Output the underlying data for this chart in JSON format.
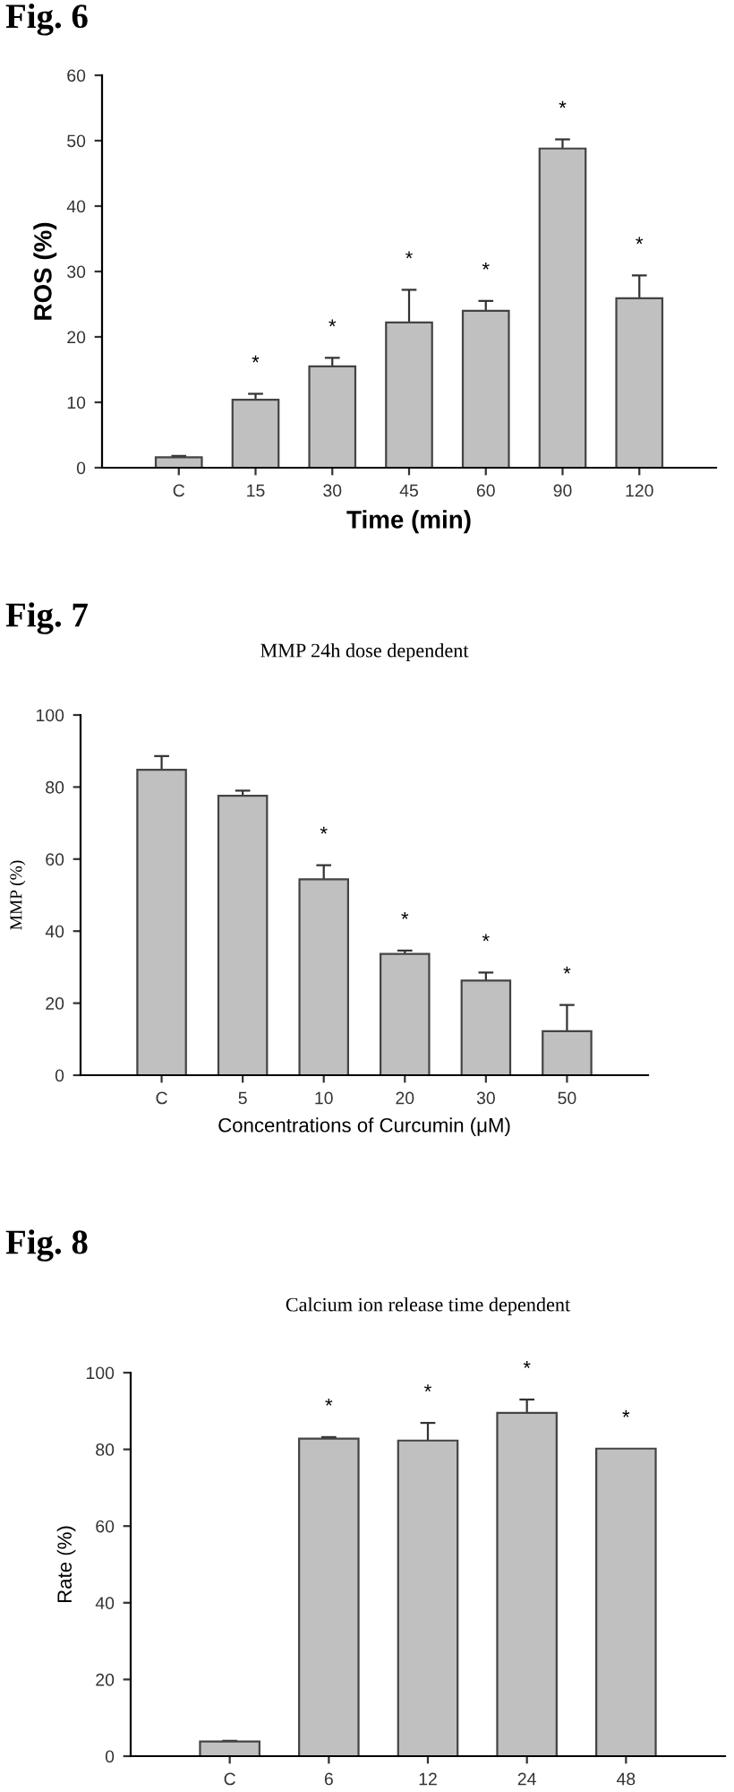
{
  "chart_data": [
    {
      "type": "bar",
      "ylabel": "ROS (%)",
      "xlabel": "Time (min)",
      "categories": [
        "C",
        "15",
        "30",
        "45",
        "60",
        "90",
        "120"
      ],
      "values": [
        1.6,
        10.4,
        15.5,
        22.2,
        24.0,
        48.8,
        25.9
      ],
      "errors": [
        0.2,
        0.9,
        1.3,
        5.0,
        1.5,
        1.4,
        3.5
      ],
      "color": "#c0c0c0",
      "ylim": [
        0,
        60
      ],
      "yticks": [
        0,
        10,
        20,
        30,
        40,
        50,
        60
      ],
      "grid": false,
      "legend": false,
      "annotations": [
        "Fig. 6",
        "*",
        "*",
        "*",
        "*",
        "*",
        "*"
      ]
    },
    {
      "type": "bar",
      "title": "MMP 24h dose dependent",
      "ylabel": "MMP (%)",
      "xlabel": "Concentrations of Curcumin (μM)",
      "categories": [
        "C",
        "5",
        "10",
        "20",
        "30",
        "50"
      ],
      "values": [
        84.8,
        77.6,
        54.4,
        33.7,
        26.3,
        12.2
      ],
      "errors": [
        3.8,
        1.4,
        3.9,
        0.9,
        2.2,
        7.3
      ],
      "color": "#c0c0c0",
      "ylim": [
        0,
        100
      ],
      "yticks": [
        0,
        20,
        40,
        60,
        80,
        100
      ],
      "grid": false,
      "legend": false,
      "annotations": [
        "Fig. 7",
        "*",
        "*",
        "*",
        "*"
      ]
    },
    {
      "type": "bar",
      "title": "Calcium ion release time dependent",
      "ylabel": "Rate (%)",
      "categories": [
        "C",
        "6",
        "12",
        "24",
        "48"
      ],
      "values": [
        3.8,
        82.8,
        82.3,
        89.5,
        80.2
      ],
      "errors": [
        0.2,
        0.4,
        4.6,
        3.5,
        null
      ],
      "color": "#c0c0c0",
      "ylim": [
        0,
        100
      ],
      "yticks": [
        0,
        20,
        40,
        60,
        80,
        100
      ],
      "grid": false,
      "legend": false,
      "annotations": [
        "Fig. 8",
        "*",
        "*",
        "*",
        "*"
      ]
    }
  ]
}
